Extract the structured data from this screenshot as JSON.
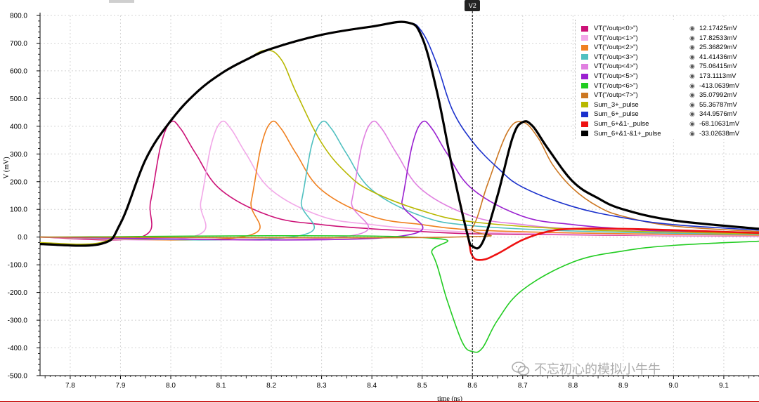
{
  "marker": {
    "label": "V2",
    "x": 8.6
  },
  "watermark": {
    "text": "不忘初心的模拟小牛牛",
    "icon": "wechat-icon"
  },
  "chart_data": {
    "type": "line",
    "title": "",
    "xlabel": "time (ns)",
    "ylabel": "V (mV)",
    "xlim": [
      7.74,
      9.17
    ],
    "ylim": [
      -500,
      800
    ],
    "xticks": [
      "7.8",
      "7.9",
      "8.0",
      "8.1",
      "8.2",
      "8.3",
      "8.4",
      "8.5",
      "8.6",
      "8.7",
      "8.8",
      "8.9",
      "9.0",
      "9.1"
    ],
    "yticks": [
      "800.0",
      "700.0",
      "600.0",
      "500.0",
      "400.0",
      "300.0",
      "200.0",
      "100.0",
      "0.0",
      "-100.0",
      "-200.0",
      "-300.0",
      "-400.0",
      "-500.0"
    ],
    "grid": true,
    "legend_position": "top-right",
    "series": [
      {
        "name": "VT(\"/outp<0>\")",
        "value": "12.17425mV",
        "color": "#cc1177",
        "x": [
          7.74,
          7.94,
          7.96,
          7.98,
          8.0,
          8.02,
          8.05,
          8.1,
          8.2,
          8.3,
          8.4,
          8.5,
          8.6,
          8.8,
          9.0,
          9.17
        ],
        "y": [
          0,
          0,
          130,
          330,
          415,
          390,
          300,
          170,
          75,
          45,
          30,
          20,
          12,
          8,
          5,
          3
        ]
      },
      {
        "name": "VT(\"/outp<1>\")",
        "value": "17.82533mV",
        "color": "#f2a8e8",
        "x": [
          7.74,
          8.04,
          8.06,
          8.08,
          8.1,
          8.12,
          8.15,
          8.2,
          8.3,
          8.4,
          8.5,
          8.6,
          8.8,
          9.0,
          9.17
        ],
        "y": [
          0,
          0,
          130,
          330,
          415,
          390,
          300,
          170,
          75,
          45,
          28,
          18,
          10,
          6,
          4
        ]
      },
      {
        "name": "VT(\"/outp<2>\")",
        "value": "25.36829mV",
        "color": "#f08020",
        "x": [
          7.74,
          8.14,
          8.16,
          8.18,
          8.2,
          8.22,
          8.25,
          8.3,
          8.4,
          8.5,
          8.6,
          8.8,
          9.0,
          9.17
        ],
        "y": [
          0,
          0,
          130,
          330,
          415,
          390,
          300,
          170,
          75,
          45,
          26,
          15,
          10,
          7
        ]
      },
      {
        "name": "VT(\"/outp<3>\")",
        "value": "41.41436mV",
        "color": "#50c0c0",
        "x": [
          7.74,
          8.24,
          8.26,
          8.28,
          8.3,
          8.32,
          8.35,
          8.4,
          8.5,
          8.6,
          8.8,
          9.0,
          9.17
        ],
        "y": [
          0,
          0,
          130,
          330,
          415,
          390,
          300,
          170,
          75,
          41,
          22,
          14,
          9
        ]
      },
      {
        "name": "VT(\"/outp<4>\")",
        "value": "75.06415mV",
        "color": "#e080e0",
        "x": [
          7.74,
          8.34,
          8.36,
          8.38,
          8.4,
          8.42,
          8.45,
          8.5,
          8.6,
          8.7,
          8.8,
          9.0,
          9.17
        ],
        "y": [
          0,
          0,
          130,
          330,
          415,
          390,
          300,
          170,
          75,
          45,
          30,
          18,
          12
        ]
      },
      {
        "name": "VT(\"/outp<5>\")",
        "value": "173.1113mV",
        "color": "#9a20d0",
        "x": [
          7.74,
          8.44,
          8.46,
          8.48,
          8.5,
          8.52,
          8.55,
          8.6,
          8.7,
          8.8,
          8.9,
          9.0,
          9.17
        ],
        "y": [
          0,
          0,
          130,
          330,
          415,
          390,
          300,
          173,
          75,
          45,
          30,
          20,
          15
        ]
      },
      {
        "name": "VT(\"/outp<6>\")",
        "value": "-413.0639mV",
        "color": "#22cc22",
        "x": [
          7.74,
          8.48,
          8.52,
          8.55,
          8.58,
          8.6,
          8.62,
          8.65,
          8.7,
          8.8,
          8.9,
          9.0,
          9.17
        ],
        "y": [
          0,
          0,
          -60,
          -230,
          -380,
          -413,
          -400,
          -300,
          -190,
          -90,
          -50,
          -30,
          -15
        ]
      },
      {
        "name": "VT(\"/outp<7>\")",
        "value": "35.07992mV",
        "color": "#cc7722",
        "x": [
          7.74,
          8.56,
          8.6,
          8.63,
          8.67,
          8.7,
          8.73,
          8.76,
          8.8,
          8.85,
          8.9,
          9.0,
          9.17
        ],
        "y": [
          0,
          0,
          35,
          190,
          380,
          415,
          360,
          260,
          175,
          110,
          75,
          40,
          20
        ]
      },
      {
        "name": "Sum_3+_pulse",
        "value": "55.36787mV",
        "color": "#b8b800",
        "x": [
          7.74,
          7.86,
          7.9,
          7.95,
          8.0,
          8.05,
          8.1,
          8.15,
          8.19,
          8.22,
          8.25,
          8.3,
          8.35,
          8.4,
          8.5,
          8.6,
          8.8,
          9.0,
          9.17
        ],
        "y": [
          -20,
          -20,
          50,
          280,
          420,
          520,
          590,
          640,
          675,
          640,
          520,
          340,
          230,
          165,
          95,
          55,
          28,
          18,
          12
        ]
      },
      {
        "name": "Sum_6+_pulse",
        "value": "344.9576mV",
        "color": "#1a30cc",
        "x": [
          7.74,
          7.86,
          7.9,
          7.95,
          8.0,
          8.05,
          8.1,
          8.15,
          8.2,
          8.3,
          8.4,
          8.47,
          8.5,
          8.53,
          8.56,
          8.6,
          8.65,
          8.7,
          8.8,
          8.9,
          9.0,
          9.17
        ],
        "y": [
          -25,
          -25,
          50,
          280,
          420,
          520,
          590,
          640,
          680,
          730,
          760,
          775,
          740,
          620,
          460,
          345,
          250,
          180,
          110,
          70,
          45,
          25
        ]
      },
      {
        "name": "Sum_6+&1-_pulse",
        "value": "-68.10631mV",
        "color": "#ee1111",
        "x": [
          7.74,
          7.86,
          7.9,
          7.95,
          8.0,
          8.05,
          8.1,
          8.15,
          8.2,
          8.3,
          8.4,
          8.47,
          8.5,
          8.53,
          8.56,
          8.59,
          8.6,
          8.62,
          8.65,
          8.7,
          8.75,
          8.8,
          8.9,
          9.0,
          9.17
        ],
        "y": [
          -25,
          -25,
          50,
          280,
          420,
          520,
          590,
          640,
          680,
          730,
          760,
          775,
          720,
          520,
          250,
          10,
          -68,
          -82,
          -60,
          -10,
          20,
          30,
          30,
          25,
          15
        ]
      },
      {
        "name": "Sum_6+&1-&1+_pulse",
        "value": "-33.02638mV",
        "color": "#000000",
        "x": [
          7.74,
          7.86,
          7.9,
          7.95,
          8.0,
          8.05,
          8.1,
          8.15,
          8.2,
          8.3,
          8.4,
          8.47,
          8.5,
          8.53,
          8.56,
          8.59,
          8.6,
          8.62,
          8.65,
          8.68,
          8.7,
          8.72,
          8.75,
          8.8,
          8.85,
          8.9,
          9.0,
          9.17
        ],
        "y": [
          -25,
          -25,
          50,
          280,
          420,
          520,
          590,
          640,
          680,
          730,
          760,
          775,
          720,
          520,
          250,
          10,
          -33,
          -20,
          150,
          360,
          415,
          400,
          320,
          200,
          140,
          100,
          60,
          30
        ]
      }
    ]
  }
}
